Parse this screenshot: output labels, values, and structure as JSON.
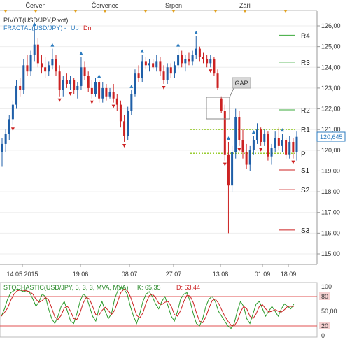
{
  "top_months": [
    {
      "label": "Červen",
      "x": 51
    },
    {
      "label": "Červenec",
      "x": 150
    },
    {
      "label": "Srpen",
      "x": 248
    },
    {
      "label": "Září",
      "x": 350
    }
  ],
  "legend": {
    "pivot": "PIVOT(USD/JPY,Pivot)",
    "fractal": "FRACTAL(USD/JPY) -",
    "up": "Up",
    "dn": "Dn"
  },
  "gap_label": "GAP",
  "current_price": "120,645",
  "price_axis": [
    "126,00",
    "125,00",
    "124,00",
    "123,00",
    "122,00",
    "121,00",
    "120,00",
    "119,00",
    "118,00",
    "117,00",
    "116,00",
    "115,00"
  ],
  "pivot_levels": [
    {
      "name": "R4",
      "value": 125.55
    },
    {
      "name": "R3",
      "value": 124.25
    },
    {
      "name": "R2",
      "value": 121.95
    },
    {
      "name": "R1",
      "value": 121.0
    },
    {
      "name": "P",
      "value": 119.85
    },
    {
      "name": "S1",
      "value": 119.05
    },
    {
      "name": "S2",
      "value": 118.1
    },
    {
      "name": "S3",
      "value": 116.15
    }
  ],
  "date_axis": [
    "14.05.2015",
    "19.06",
    "08.07",
    "27.07",
    "13.08",
    "01.09",
    "18.09"
  ],
  "stoch": {
    "title": "STOCHASTIC(USD/JPY, 5, 3, 3, MVA, MVA)",
    "k": "K: 65,35",
    "d": "D: 63,44",
    "axis": [
      "100",
      "80",
      "50,00",
      "20",
      "0"
    ],
    "k_values": [
      40,
      55,
      75,
      88,
      92,
      95,
      93,
      90,
      92,
      88,
      75,
      60,
      70,
      85,
      80,
      55,
      35,
      25,
      40,
      60,
      70,
      50,
      30,
      25,
      45,
      70,
      85,
      80,
      60,
      40,
      30,
      55,
      70,
      50,
      35,
      45,
      75,
      92,
      98,
      95,
      85,
      60,
      40,
      25,
      45,
      70,
      85,
      90,
      80,
      65,
      55,
      70,
      80,
      60,
      40,
      30,
      50,
      75,
      85,
      88,
      70,
      45,
      25,
      20,
      35,
      60,
      75,
      80,
      70,
      50,
      40,
      30,
      20,
      15,
      25,
      50,
      70,
      60,
      35,
      25,
      45,
      65,
      70,
      55,
      40,
      50,
      60,
      50,
      40,
      55,
      65,
      60,
      55,
      65
    ]
  },
  "chart_data": {
    "type": "candlestick",
    "title": "PIVOT(USD/JPY,Pivot)",
    "series": "USD/JPY",
    "candles": [
      {
        "o": 119.9,
        "h": 120.6,
        "l": 119.2,
        "c": 120.3
      },
      {
        "o": 120.3,
        "h": 121.0,
        "l": 119.9,
        "c": 120.8
      },
      {
        "o": 120.8,
        "h": 121.7,
        "l": 120.5,
        "c": 121.5
      },
      {
        "o": 121.5,
        "h": 122.4,
        "l": 121.2,
        "c": 122.2
      },
      {
        "o": 122.2,
        "h": 123.4,
        "l": 122.0,
        "c": 123.1
      },
      {
        "o": 123.1,
        "h": 123.5,
        "l": 122.6,
        "c": 122.9
      },
      {
        "o": 122.9,
        "h": 124.4,
        "l": 122.7,
        "c": 124.1
      },
      {
        "o": 124.1,
        "h": 124.6,
        "l": 123.6,
        "c": 123.8
      },
      {
        "o": 123.8,
        "h": 124.8,
        "l": 123.6,
        "c": 124.6
      },
      {
        "o": 124.6,
        "h": 125.9,
        "l": 124.3,
        "c": 125.1
      },
      {
        "o": 125.1,
        "h": 125.4,
        "l": 124.0,
        "c": 124.2
      },
      {
        "o": 124.2,
        "h": 124.6,
        "l": 123.7,
        "c": 124.0
      },
      {
        "o": 124.0,
        "h": 124.5,
        "l": 123.5,
        "c": 123.8
      },
      {
        "o": 123.8,
        "h": 124.3,
        "l": 123.6,
        "c": 124.1
      },
      {
        "o": 124.1,
        "h": 124.9,
        "l": 123.9,
        "c": 124.4
      },
      {
        "o": 124.4,
        "h": 124.6,
        "l": 123.6,
        "c": 123.8
      },
      {
        "o": 123.8,
        "h": 124.1,
        "l": 122.6,
        "c": 122.9
      },
      {
        "o": 122.9,
        "h": 123.6,
        "l": 122.6,
        "c": 123.4
      },
      {
        "o": 123.4,
        "h": 123.7,
        "l": 123.0,
        "c": 123.2
      },
      {
        "o": 123.2,
        "h": 123.6,
        "l": 122.9,
        "c": 123.4
      },
      {
        "o": 123.4,
        "h": 123.5,
        "l": 122.7,
        "c": 122.9
      },
      {
        "o": 122.9,
        "h": 123.3,
        "l": 122.5,
        "c": 123.1
      },
      {
        "o": 123.1,
        "h": 124.5,
        "l": 122.9,
        "c": 124.0
      },
      {
        "o": 124.0,
        "h": 124.3,
        "l": 123.4,
        "c": 123.6
      },
      {
        "o": 123.6,
        "h": 123.8,
        "l": 122.8,
        "c": 123.0
      },
      {
        "o": 123.0,
        "h": 123.4,
        "l": 122.5,
        "c": 122.7
      },
      {
        "o": 122.7,
        "h": 123.5,
        "l": 122.6,
        "c": 123.3
      },
      {
        "o": 123.3,
        "h": 123.4,
        "l": 122.3,
        "c": 122.5
      },
      {
        "o": 122.5,
        "h": 123.3,
        "l": 122.3,
        "c": 123.0
      },
      {
        "o": 123.0,
        "h": 123.2,
        "l": 122.4,
        "c": 122.6
      },
      {
        "o": 122.6,
        "h": 123.0,
        "l": 122.5,
        "c": 122.8
      },
      {
        "o": 122.8,
        "h": 123.2,
        "l": 122.3,
        "c": 122.5
      },
      {
        "o": 122.5,
        "h": 122.7,
        "l": 121.9,
        "c": 122.2
      },
      {
        "o": 122.2,
        "h": 122.4,
        "l": 121.1,
        "c": 121.4
      },
      {
        "o": 121.4,
        "h": 121.7,
        "l": 120.4,
        "c": 120.7
      },
      {
        "o": 120.7,
        "h": 122.1,
        "l": 120.5,
        "c": 121.9
      },
      {
        "o": 121.9,
        "h": 122.9,
        "l": 121.7,
        "c": 122.7
      },
      {
        "o": 122.7,
        "h": 123.9,
        "l": 122.6,
        "c": 123.7
      },
      {
        "o": 123.7,
        "h": 124.1,
        "l": 123.3,
        "c": 123.5
      },
      {
        "o": 123.5,
        "h": 124.6,
        "l": 123.3,
        "c": 124.3
      },
      {
        "o": 124.3,
        "h": 124.5,
        "l": 123.9,
        "c": 124.1
      },
      {
        "o": 124.1,
        "h": 124.4,
        "l": 123.8,
        "c": 124.2
      },
      {
        "o": 124.2,
        "h": 124.4,
        "l": 123.9,
        "c": 124.0
      },
      {
        "o": 124.0,
        "h": 124.6,
        "l": 123.8,
        "c": 124.3
      },
      {
        "o": 124.3,
        "h": 124.5,
        "l": 123.6,
        "c": 123.8
      },
      {
        "o": 123.8,
        "h": 124.1,
        "l": 123.2,
        "c": 123.4
      },
      {
        "o": 123.4,
        "h": 124.2,
        "l": 123.2,
        "c": 124.0
      },
      {
        "o": 124.0,
        "h": 124.2,
        "l": 123.5,
        "c": 123.7
      },
      {
        "o": 123.7,
        "h": 124.3,
        "l": 123.5,
        "c": 124.1
      },
      {
        "o": 124.1,
        "h": 124.9,
        "l": 123.9,
        "c": 124.6
      },
      {
        "o": 124.6,
        "h": 124.8,
        "l": 124.0,
        "c": 124.2
      },
      {
        "o": 124.2,
        "h": 124.6,
        "l": 123.8,
        "c": 124.4
      },
      {
        "o": 124.4,
        "h": 124.7,
        "l": 124.1,
        "c": 124.3
      },
      {
        "o": 124.3,
        "h": 124.8,
        "l": 124.1,
        "c": 124.6
      },
      {
        "o": 124.6,
        "h": 125.5,
        "l": 124.4,
        "c": 124.9
      },
      {
        "o": 124.9,
        "h": 125.0,
        "l": 124.3,
        "c": 124.5
      },
      {
        "o": 124.5,
        "h": 124.7,
        "l": 124.2,
        "c": 124.4
      },
      {
        "o": 124.4,
        "h": 124.6,
        "l": 124.0,
        "c": 124.2
      },
      {
        "o": 124.2,
        "h": 124.6,
        "l": 124.0,
        "c": 124.4
      },
      {
        "o": 124.4,
        "h": 124.5,
        "l": 123.6,
        "c": 123.7
      },
      {
        "o": 123.7,
        "h": 123.9,
        "l": 122.9,
        "c": 123.0
      },
      {
        "o": 122.5,
        "h": 122.6,
        "l": 121.8,
        "c": 121.9
      },
      {
        "o": 121.9,
        "h": 122.2,
        "l": 119.5,
        "c": 119.8
      },
      {
        "o": 119.8,
        "h": 120.4,
        "l": 116.0,
        "c": 118.3
      },
      {
        "o": 118.3,
        "h": 120.2,
        "l": 118.0,
        "c": 119.9
      },
      {
        "o": 119.9,
        "h": 122.0,
        "l": 119.6,
        "c": 121.6
      },
      {
        "o": 121.6,
        "h": 121.9,
        "l": 120.2,
        "c": 120.5
      },
      {
        "o": 120.5,
        "h": 121.0,
        "l": 119.6,
        "c": 119.9
      },
      {
        "o": 119.9,
        "h": 120.3,
        "l": 119.1,
        "c": 119.3
      },
      {
        "o": 119.3,
        "h": 120.2,
        "l": 119.0,
        "c": 120.0
      },
      {
        "o": 120.0,
        "h": 120.7,
        "l": 119.8,
        "c": 120.5
      },
      {
        "o": 120.5,
        "h": 121.3,
        "l": 120.3,
        "c": 121.0
      },
      {
        "o": 121.0,
        "h": 121.1,
        "l": 120.2,
        "c": 120.4
      },
      {
        "o": 120.4,
        "h": 121.0,
        "l": 120.2,
        "c": 120.8
      },
      {
        "o": 120.8,
        "h": 120.9,
        "l": 119.5,
        "c": 119.7
      },
      {
        "o": 119.7,
        "h": 120.3,
        "l": 119.3,
        "c": 120.1
      },
      {
        "o": 120.1,
        "h": 120.9,
        "l": 119.9,
        "c": 120.6
      },
      {
        "o": 120.6,
        "h": 121.1,
        "l": 120.0,
        "c": 120.2
      },
      {
        "o": 120.2,
        "h": 120.8,
        "l": 119.9,
        "c": 120.5
      },
      {
        "o": 120.5,
        "h": 120.6,
        "l": 119.6,
        "c": 119.8
      },
      {
        "o": 119.8,
        "h": 120.7,
        "l": 119.6,
        "c": 120.4
      },
      {
        "o": 120.4,
        "h": 120.6,
        "l": 119.6,
        "c": 119.9
      },
      {
        "o": 119.9,
        "h": 120.9,
        "l": 119.5,
        "c": 120.645
      }
    ],
    "fractal_up_index": [
      9,
      14,
      22,
      27,
      36,
      39,
      49,
      54,
      63,
      70,
      78,
      84
    ],
    "fractal_dn_index": [
      3,
      16,
      19,
      25,
      31,
      34,
      45,
      58,
      62,
      66,
      72,
      81
    ],
    "ylim": [
      114.5,
      126.7
    ]
  }
}
